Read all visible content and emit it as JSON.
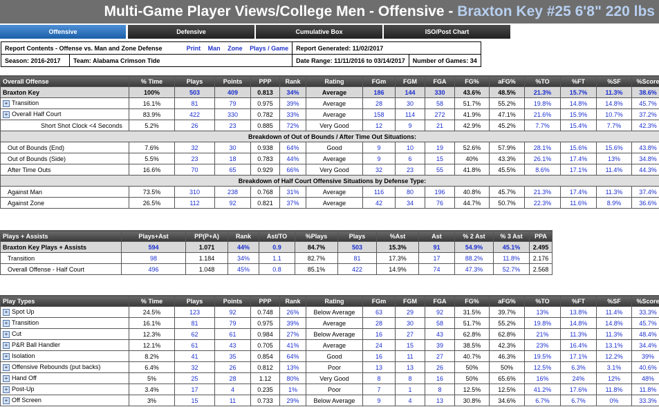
{
  "title": {
    "prefix": "Multi-Game Player Views/College Men - Offensive - ",
    "player": "Braxton Key #25 6'8\" 220 lbs"
  },
  "tabs": [
    "Offensive",
    "Defensive",
    "Cumulative Box",
    "ISO/Post Chart"
  ],
  "report": {
    "contents": "Report Contents - Offense vs. Man and Zone Defense",
    "links": [
      "Print",
      "Man",
      "Zone",
      "Plays / Game"
    ],
    "generated": "Report Generated: 11/02/2017",
    "season": "Season: 2016-2017",
    "team": "Team: Alabama Crimson Tide",
    "range": "Date Range: 11/11/2016 to 03/14/2017",
    "games": "Number of Games: 34"
  },
  "overall": {
    "headers": [
      "Overall Offense",
      "% Time",
      "Plays",
      "Points",
      "PPP",
      "Rank",
      "Rating",
      "FGm",
      "FGM",
      "FGA",
      "FG%",
      "aFG%",
      "%TO",
      "%FT",
      "%SF",
      "%Score"
    ],
    "rows": [
      {
        "type": "hi",
        "cells": [
          "Braxton Key",
          "100%",
          "503",
          "409",
          "0.813",
          "34%",
          "Average",
          "186",
          "144",
          "330",
          "43.6%",
          "48.5%",
          "21.3%",
          "15.7%",
          "11.3%",
          "38.6%"
        ]
      },
      {
        "type": "exp",
        "cells": [
          "Transition",
          "16.1%",
          "81",
          "79",
          "0.975",
          "39%",
          "Average",
          "28",
          "30",
          "58",
          "51.7%",
          "55.2%",
          "19.8%",
          "14.8%",
          "14.8%",
          "45.7%"
        ]
      },
      {
        "type": "exp",
        "cells": [
          "Overall Half Court",
          "83.9%",
          "422",
          "330",
          "0.782",
          "33%",
          "Average",
          "158",
          "114",
          "272",
          "41.9%",
          "47.1%",
          "21.6%",
          "15.9%",
          "10.7%",
          "37.2%"
        ]
      },
      {
        "type": "ind2",
        "cells": [
          "Short Shot Clock <4 Seconds",
          "5.2%",
          "26",
          "23",
          "0.885",
          "72%",
          "Very Good",
          "12",
          "9",
          "21",
          "42.9%",
          "45.2%",
          "7.7%",
          "15.4%",
          "7.7%",
          "42.3%"
        ]
      },
      {
        "type": "sec",
        "cells": [
          "Breakdown of Out of Bounds / After Time Out Situations:"
        ]
      },
      {
        "type": "ind",
        "cells": [
          "Out of Bounds (End)",
          "7.6%",
          "32",
          "30",
          "0.938",
          "64%",
          "Good",
          "9",
          "10",
          "19",
          "52.6%",
          "57.9%",
          "28.1%",
          "15.6%",
          "15.6%",
          "43.8%"
        ]
      },
      {
        "type": "ind",
        "cells": [
          "Out of Bounds (Side)",
          "5.5%",
          "23",
          "18",
          "0.783",
          "44%",
          "Average",
          "9",
          "6",
          "15",
          "40%",
          "43.3%",
          "26.1%",
          "17.4%",
          "13%",
          "34.8%"
        ]
      },
      {
        "type": "ind",
        "cells": [
          "After Time Outs",
          "16.6%",
          "70",
          "65",
          "0.929",
          "66%",
          "Very Good",
          "32",
          "23",
          "55",
          "41.8%",
          "45.5%",
          "8.6%",
          "17.1%",
          "11.4%",
          "44.3%"
        ]
      },
      {
        "type": "sec",
        "cells": [
          "Breakdown of Half Court Offensive Situations by Defense Type:"
        ]
      },
      {
        "type": "ind",
        "cells": [
          "Against Man",
          "73.5%",
          "310",
          "238",
          "0.768",
          "31%",
          "Average",
          "116",
          "80",
          "196",
          "40.8%",
          "45.7%",
          "21.3%",
          "17.4%",
          "11.3%",
          "37.4%"
        ]
      },
      {
        "type": "ind",
        "cells": [
          "Against Zone",
          "26.5%",
          "112",
          "92",
          "0.821",
          "37%",
          "Average",
          "42",
          "34",
          "76",
          "44.7%",
          "50.7%",
          "22.3%",
          "11.6%",
          "8.9%",
          "36.6%"
        ]
      }
    ]
  },
  "assists": {
    "headers": [
      "Plays + Assists",
      "Plays+Ast",
      "PP(P+A)",
      "Rank",
      "Ast/TO",
      "%Plays",
      "Plays",
      "%Ast",
      "Ast",
      "% 2 Ast",
      "% 3 Ast",
      "PPA"
    ],
    "rows": [
      {
        "type": "hi",
        "cells": [
          "Braxton Key Plays + Assists",
          "594",
          "1.071",
          "44%",
          "0.9",
          "84.7%",
          "503",
          "15.3%",
          "91",
          "54.9%",
          "45.1%",
          "2.495"
        ]
      },
      {
        "type": "ind",
        "cells": [
          "Transition",
          "98",
          "1.184",
          "34%",
          "1.1",
          "82.7%",
          "81",
          "17.3%",
          "17",
          "88.2%",
          "11.8%",
          "2.176"
        ]
      },
      {
        "type": "ind",
        "cells": [
          "Overall Offense - Half Court",
          "496",
          "1.048",
          "45%",
          "0.8",
          "85.1%",
          "422",
          "14.9%",
          "74",
          "47.3%",
          "52.7%",
          "2.568"
        ]
      }
    ]
  },
  "playtypes": {
    "headers": [
      "Play Types",
      "% Time",
      "Plays",
      "Points",
      "PPP",
      "Rank",
      "Rating",
      "FGm",
      "FGM",
      "FGA",
      "FG%",
      "aFG%",
      "%TO",
      "%FT",
      "%SF",
      "%Score"
    ],
    "rows": [
      {
        "type": "exp",
        "cells": [
          "Spot Up",
          "24.5%",
          "123",
          "92",
          "0.748",
          "26%",
          "Below Average",
          "63",
          "29",
          "92",
          "31.5%",
          "39.7%",
          "13%",
          "13.8%",
          "11.4%",
          "33.3%"
        ]
      },
      {
        "type": "exp",
        "cells": [
          "Transition",
          "16.1%",
          "81",
          "79",
          "0.975",
          "39%",
          "Average",
          "28",
          "30",
          "58",
          "51.7%",
          "55.2%",
          "19.8%",
          "14.8%",
          "14.8%",
          "45.7%"
        ]
      },
      {
        "type": "exp",
        "cells": [
          "Cut",
          "12.3%",
          "62",
          "61",
          "0.984",
          "27%",
          "Below Average",
          "16",
          "27",
          "43",
          "62.8%",
          "62.8%",
          "21%",
          "11.3%",
          "11.3%",
          "48.4%"
        ]
      },
      {
        "type": "exp",
        "cells": [
          "P&R Ball Handler",
          "12.1%",
          "61",
          "43",
          "0.705",
          "41%",
          "Average",
          "24",
          "15",
          "39",
          "38.5%",
          "42.3%",
          "23%",
          "16.4%",
          "13.1%",
          "34.4%"
        ]
      },
      {
        "type": "exp",
        "cells": [
          "Isolation",
          "8.2%",
          "41",
          "35",
          "0.854",
          "64%",
          "Good",
          "16",
          "11",
          "27",
          "40.7%",
          "46.3%",
          "19.5%",
          "17.1%",
          "12.2%",
          "39%"
        ]
      },
      {
        "type": "exp",
        "cells": [
          "Offensive Rebounds (put backs)",
          "6.4%",
          "32",
          "26",
          "0.812",
          "13%",
          "Poor",
          "13",
          "13",
          "26",
          "50%",
          "50%",
          "12.5%",
          "6.3%",
          "3.1%",
          "40.6%"
        ]
      },
      {
        "type": "exp",
        "cells": [
          "Hand Off",
          "5%",
          "25",
          "28",
          "1.12",
          "80%",
          "Very Good",
          "8",
          "8",
          "16",
          "50%",
          "65.6%",
          "16%",
          "24%",
          "12%",
          "48%"
        ]
      },
      {
        "type": "exp",
        "cells": [
          "Post-Up",
          "3.4%",
          "17",
          "4",
          "0.235",
          "1%",
          "Poor",
          "7",
          "1",
          "8",
          "12.5%",
          "12.5%",
          "41.2%",
          "17.6%",
          "11.8%",
          "11.8%"
        ]
      },
      {
        "type": "exp",
        "cells": [
          "Off Screen",
          "3%",
          "15",
          "11",
          "0.733",
          "29%",
          "Below Average",
          "9",
          "4",
          "13",
          "30.8%",
          "34.6%",
          "6.7%",
          "6.7%",
          "0%",
          "33.3%"
        ]
      }
    ]
  },
  "colors": {
    "accent": "#1a5fa8",
    "link": "#1a2fd0",
    "header": "#3a3a3a"
  }
}
